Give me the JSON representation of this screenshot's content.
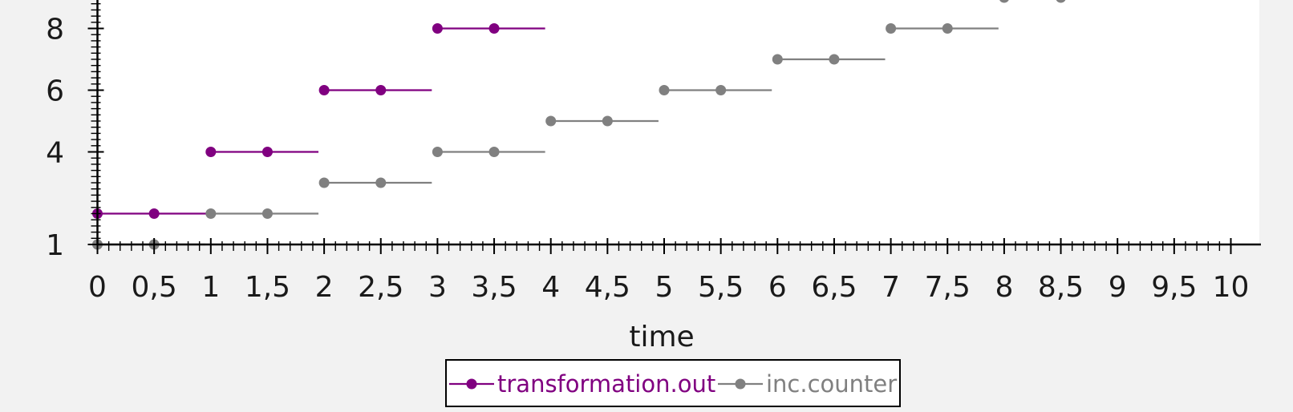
{
  "chart_data": {
    "type": "line",
    "xlabel": "time",
    "ylabel": "",
    "xlim": [
      0,
      10
    ],
    "x_tick_labels": [
      "0",
      "0,5",
      "1",
      "1,5",
      "2",
      "2,5",
      "3",
      "3,5",
      "4",
      "4,5",
      "5",
      "5,5",
      "6",
      "6,5",
      "7",
      "7,5",
      "8",
      "8,5",
      "9",
      "9,5",
      "10"
    ],
    "y_tick_labels": [
      "1",
      "4",
      "6",
      "8"
    ],
    "y_tick_values": [
      1,
      4,
      6,
      8
    ],
    "legend_position": "bottom",
    "series": [
      {
        "name": "transformation.out",
        "color": "#800080",
        "style": "step",
        "steps": [
          {
            "x_start": 0,
            "x_end": 1,
            "y": 2,
            "points": [
              0,
              0.5
            ]
          },
          {
            "x_start": 1,
            "x_end": 1.95,
            "y": 4,
            "points": [
              1,
              1.5
            ]
          },
          {
            "x_start": 2,
            "x_end": 2.95,
            "y": 6,
            "points": [
              2,
              2.5
            ]
          },
          {
            "x_start": 3,
            "x_end": 3.95,
            "y": 8,
            "points": [
              3,
              3.5
            ]
          }
        ]
      },
      {
        "name": "inc.counter",
        "color": "#808080",
        "style": "step",
        "steps": [
          {
            "x_start": 0,
            "x_end": 0.95,
            "y": 1,
            "points": [
              0,
              0.5
            ]
          },
          {
            "x_start": 1,
            "x_end": 1.95,
            "y": 2,
            "points": [
              1,
              1.5
            ]
          },
          {
            "x_start": 2,
            "x_end": 2.95,
            "y": 3,
            "points": [
              2,
              2.5
            ]
          },
          {
            "x_start": 3,
            "x_end": 3.95,
            "y": 4,
            "points": [
              3,
              3.5
            ]
          },
          {
            "x_start": 4,
            "x_end": 4.95,
            "y": 5,
            "points": [
              4,
              4.5
            ]
          },
          {
            "x_start": 5,
            "x_end": 5.95,
            "y": 6,
            "points": [
              5,
              5.5
            ]
          },
          {
            "x_start": 6,
            "x_end": 6.95,
            "y": 7,
            "points": [
              6,
              6.5
            ]
          },
          {
            "x_start": 7,
            "x_end": 7.95,
            "y": 8,
            "points": [
              7,
              7.5
            ]
          },
          {
            "x_start": 8,
            "x_end": 8.95,
            "y": 9,
            "points": [
              8,
              8.5
            ]
          }
        ]
      }
    ]
  }
}
